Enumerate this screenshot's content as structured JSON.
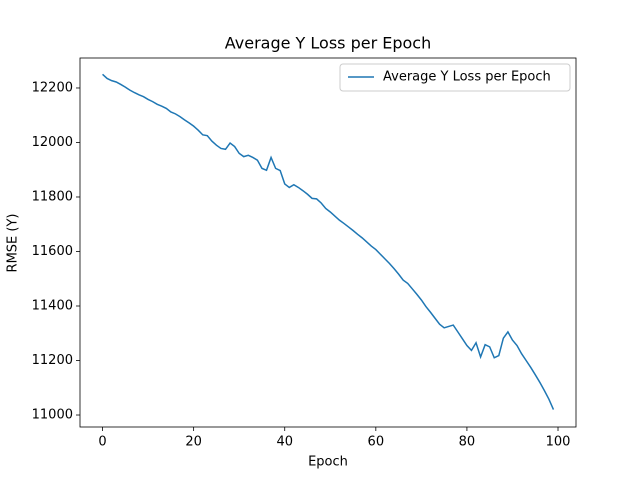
{
  "chart_data": {
    "type": "line",
    "title": "Average Y Loss per Epoch",
    "x_label": "Epoch",
    "y_label": "RMSE (Y)",
    "x": [
      0,
      1,
      2,
      3,
      4,
      5,
      6,
      7,
      8,
      9,
      10,
      11,
      12,
      13,
      14,
      15,
      16,
      17,
      18,
      19,
      20,
      21,
      22,
      23,
      24,
      25,
      26,
      27,
      28,
      29,
      30,
      31,
      32,
      33,
      34,
      35,
      36,
      37,
      38,
      39,
      40,
      41,
      42,
      43,
      44,
      45,
      46,
      47,
      48,
      49,
      50,
      51,
      52,
      53,
      54,
      55,
      56,
      57,
      58,
      59,
      60,
      61,
      62,
      63,
      64,
      65,
      66,
      67,
      68,
      69,
      70,
      71,
      72,
      73,
      74,
      75,
      76,
      77,
      78,
      79,
      80,
      81,
      82,
      83,
      84,
      85,
      86,
      87,
      88,
      89,
      90,
      91,
      92,
      93,
      94,
      95,
      96,
      97,
      98,
      99
    ],
    "series": [
      {
        "name": "Average Y Loss per Epoch",
        "color": "#1f77b4",
        "values": [
          12250,
          12235,
          12227,
          12222,
          12213,
          12203,
          12192,
          12183,
          12175,
          12168,
          12158,
          12150,
          12140,
          12133,
          12125,
          12112,
          12105,
          12095,
          12083,
          12072,
          12060,
          12045,
          12028,
          12025,
          12005,
          11990,
          11978,
          11975,
          11998,
          11985,
          11960,
          11948,
          11953,
          11945,
          11935,
          11905,
          11898,
          11945,
          11905,
          11897,
          11848,
          11835,
          11845,
          11835,
          11823,
          11810,
          11795,
          11793,
          11778,
          11758,
          11745,
          11730,
          11715,
          11703,
          11690,
          11677,
          11663,
          11650,
          11635,
          11620,
          11607,
          11590,
          11573,
          11556,
          11537,
          11517,
          11495,
          11483,
          11463,
          11443,
          11422,
          11398,
          11377,
          11355,
          11333,
          11320,
          11325,
          11330,
          11305,
          11280,
          11255,
          11237,
          11265,
          11213,
          11258,
          11250,
          11210,
          11218,
          11282,
          11305,
          11275,
          11255,
          11225,
          11200,
          11175,
          11148,
          11120,
          11090,
          11058,
          11020
        ]
      }
    ],
    "xlim": [
      -4.95,
      103.95
    ],
    "xticks": [
      0,
      20,
      40,
      60,
      80,
      100
    ],
    "ylim": [
      10956,
      12310
    ],
    "yticks": [
      11000,
      11200,
      11400,
      11600,
      11800,
      12000,
      12200
    ],
    "grid": false,
    "legend": "upper right"
  }
}
